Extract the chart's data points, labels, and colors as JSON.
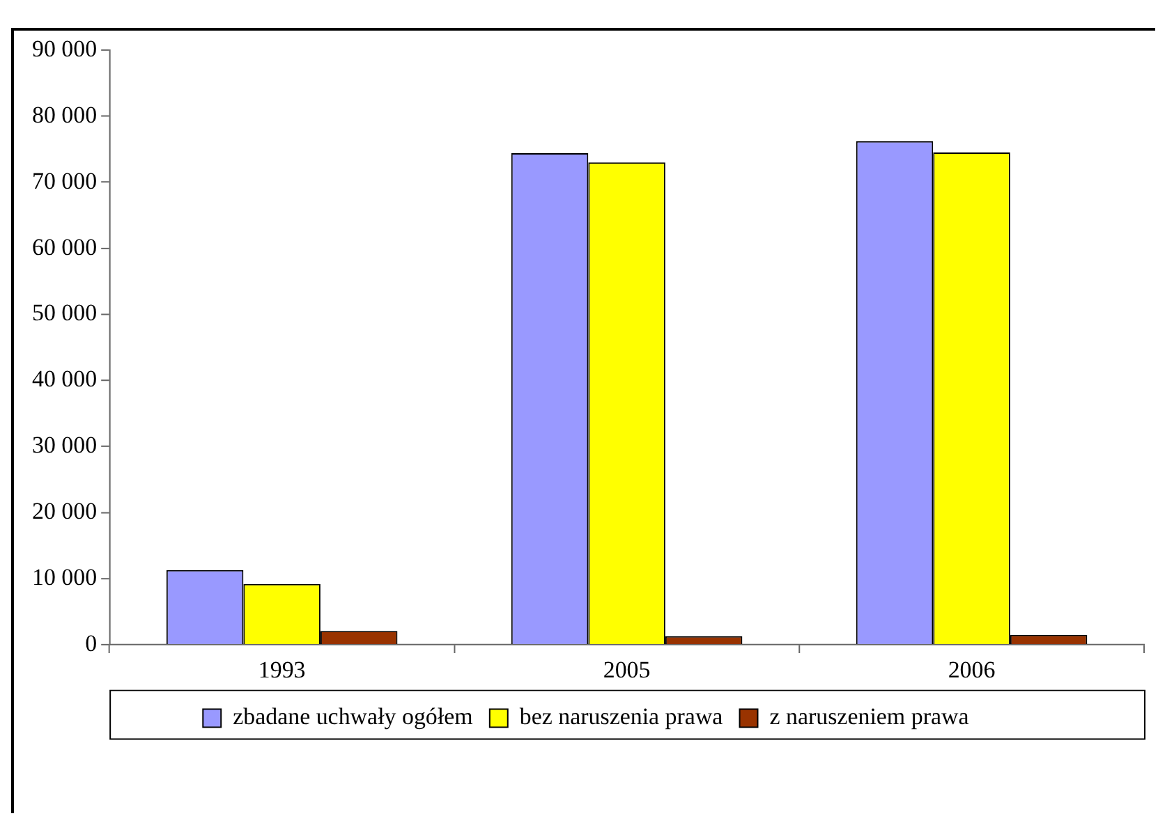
{
  "chart_data": {
    "type": "bar",
    "categories": [
      "1993",
      "2005",
      "2006"
    ],
    "series": [
      {
        "name": "zbadane uchwały ogółem",
        "color": "#9999ff",
        "values": [
          11300,
          74400,
          76200
        ]
      },
      {
        "name": "bez naruszenia prawa",
        "color": "#ffff00",
        "values": [
          9200,
          73000,
          74500
        ]
      },
      {
        "name": "z naruszeniem prawa",
        "color": "#993300",
        "values": [
          2100,
          1300,
          1500
        ]
      }
    ],
    "ylim": [
      0,
      90000
    ],
    "yticks": [
      {
        "value": 0,
        "label": "0"
      },
      {
        "value": 10000,
        "label": "10 000"
      },
      {
        "value": 20000,
        "label": "20 000"
      },
      {
        "value": 30000,
        "label": "30 000"
      },
      {
        "value": 40000,
        "label": "40 000"
      },
      {
        "value": 50000,
        "label": "50 000"
      },
      {
        "value": 60000,
        "label": "60 000"
      },
      {
        "value": 70000,
        "label": "70 000"
      },
      {
        "value": 80000,
        "label": "80 000"
      },
      {
        "value": 90000,
        "label": "90 000"
      }
    ],
    "grid": false,
    "legend": "bottom"
  }
}
